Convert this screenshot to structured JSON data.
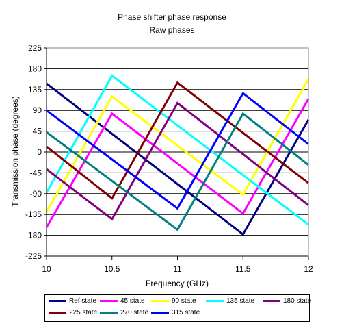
{
  "chart_data": {
    "type": "line",
    "title": "Phase shifter phase response",
    "subtitle": "Raw phases",
    "xlabel": "Frequency (GHz)",
    "ylabel": "Transmission phase (degrees)",
    "xlim": [
      10,
      12
    ],
    "ylim": [
      -225,
      225
    ],
    "xticks": [
      "10",
      "10.5",
      "11",
      "11.5",
      "12"
    ],
    "yticks": [
      "225",
      "180",
      "135",
      "90",
      "45",
      "0",
      "-45",
      "-90",
      "-135",
      "-180",
      "-225"
    ],
    "grid": "horizontal",
    "legend_position": "bottom",
    "series": [
      {
        "name": "Ref state",
        "color": "#000080",
        "points": [
          [
            10,
            148
          ],
          [
            11.5,
            -178
          ],
          [
            12,
            70
          ]
        ]
      },
      {
        "name": "45 state",
        "color": "#ff00ff",
        "points": [
          [
            10,
            -163
          ],
          [
            10.5,
            83
          ],
          [
            11.5,
            -133
          ],
          [
            12,
            115
          ]
        ]
      },
      {
        "name": "90 state",
        "color": "#ffff00",
        "points": [
          [
            10,
            -130
          ],
          [
            10.5,
            120
          ],
          [
            11.5,
            -92
          ],
          [
            12,
            158
          ]
        ]
      },
      {
        "name": "135 state",
        "color": "#00ffff",
        "points": [
          [
            10,
            -88
          ],
          [
            10.5,
            165
          ],
          [
            12,
            -157
          ]
        ]
      },
      {
        "name": "180 state",
        "color": "#800080",
        "points": [
          [
            10,
            -37
          ],
          [
            10.5,
            -145
          ],
          [
            11,
            106
          ],
          [
            12,
            -115
          ]
        ]
      },
      {
        "name": "225 state",
        "color": "#800000",
        "points": [
          [
            10,
            12
          ],
          [
            10.5,
            -100
          ],
          [
            11,
            150
          ],
          [
            12,
            -67
          ]
        ]
      },
      {
        "name": "270 state",
        "color": "#008080",
        "points": [
          [
            10,
            43
          ],
          [
            11,
            -168
          ],
          [
            11.5,
            83
          ],
          [
            12,
            -28
          ]
        ]
      },
      {
        "name": "315 state",
        "color": "#0000ff",
        "points": [
          [
            10,
            90
          ],
          [
            11,
            -122
          ],
          [
            11.5,
            127
          ],
          [
            12,
            17
          ]
        ]
      }
    ]
  }
}
